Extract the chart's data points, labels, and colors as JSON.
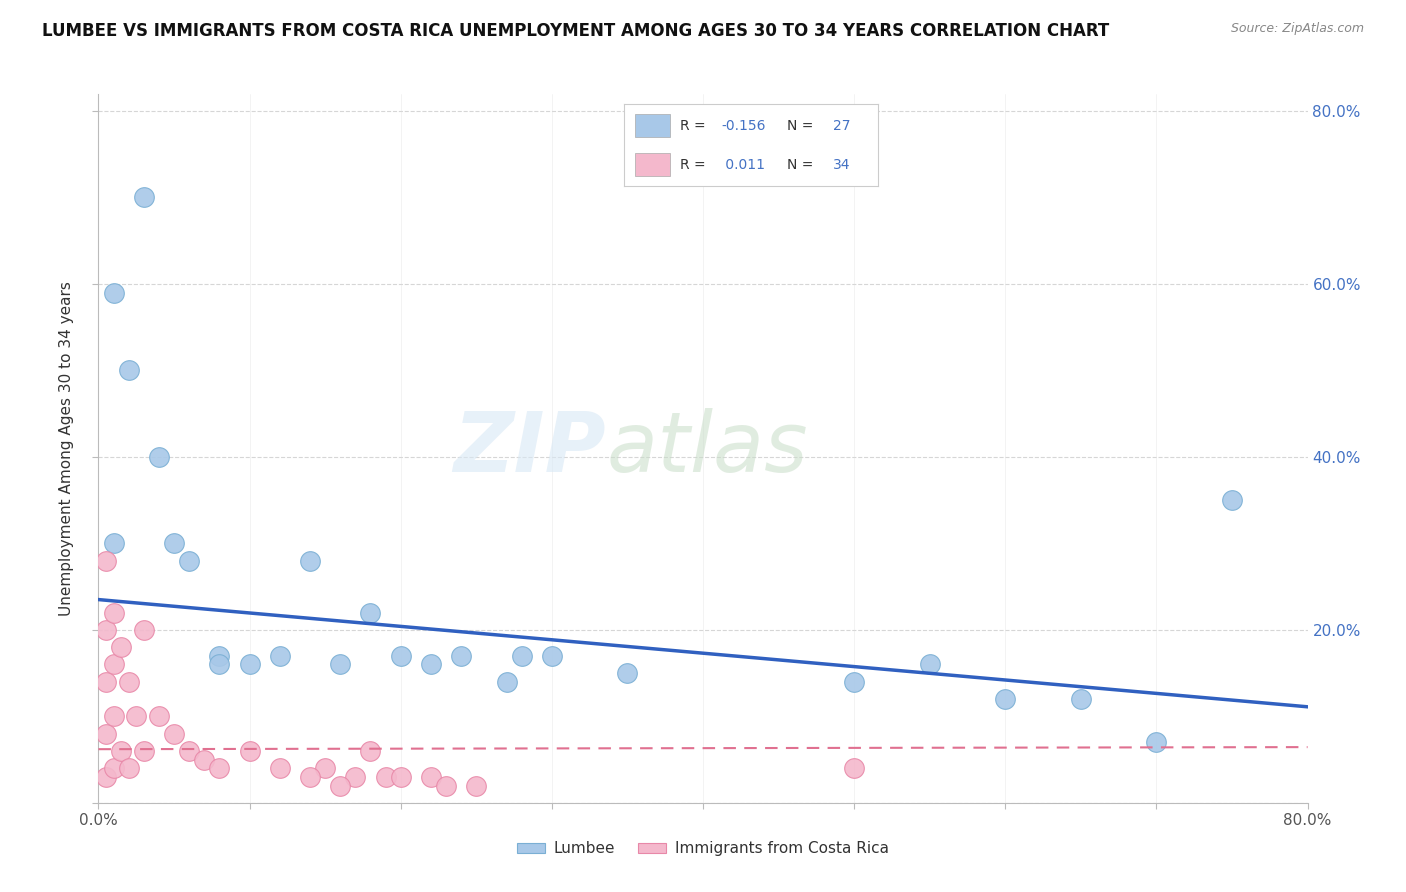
{
  "title": "LUMBEE VS IMMIGRANTS FROM COSTA RICA UNEMPLOYMENT AMONG AGES 30 TO 34 YEARS CORRELATION CHART",
  "source": "Source: ZipAtlas.com",
  "ylabel": "Unemployment Among Ages 30 to 34 years",
  "xlim": [
    0.0,
    0.8
  ],
  "ylim": [
    0.0,
    0.82
  ],
  "yticks": [
    0.0,
    0.2,
    0.4,
    0.6,
    0.8
  ],
  "lumbee_color": "#a8c8e8",
  "lumbee_edge_color": "#7aafd4",
  "costa_rica_color": "#f4b8cc",
  "costa_rica_edge_color": "#e888a8",
  "lumbee_line_color": "#3060c0",
  "costa_rica_line_color": "#e07090",
  "legend_R1": "-0.156",
  "legend_N1": "27",
  "legend_R2": "0.011",
  "legend_N2": "34",
  "lumbee_x": [
    0.01,
    0.01,
    0.02,
    0.03,
    0.04,
    0.05,
    0.06,
    0.08,
    0.1,
    0.12,
    0.14,
    0.16,
    0.18,
    0.2,
    0.22,
    0.24,
    0.27,
    0.3,
    0.35,
    0.5,
    0.55,
    0.6,
    0.65,
    0.7,
    0.75,
    0.28,
    0.08
  ],
  "lumbee_y": [
    0.59,
    0.3,
    0.5,
    0.7,
    0.4,
    0.3,
    0.28,
    0.17,
    0.16,
    0.17,
    0.28,
    0.16,
    0.22,
    0.17,
    0.16,
    0.17,
    0.14,
    0.17,
    0.15,
    0.14,
    0.16,
    0.12,
    0.12,
    0.07,
    0.35,
    0.17,
    0.16
  ],
  "costa_rica_x": [
    0.005,
    0.005,
    0.005,
    0.005,
    0.005,
    0.01,
    0.01,
    0.01,
    0.01,
    0.015,
    0.015,
    0.02,
    0.02,
    0.025,
    0.03,
    0.03,
    0.04,
    0.05,
    0.06,
    0.07,
    0.08,
    0.1,
    0.12,
    0.15,
    0.17,
    0.19,
    0.2,
    0.22,
    0.23,
    0.25,
    0.14,
    0.16,
    0.18,
    0.5
  ],
  "costa_rica_y": [
    0.28,
    0.2,
    0.14,
    0.08,
    0.03,
    0.22,
    0.16,
    0.1,
    0.04,
    0.18,
    0.06,
    0.14,
    0.04,
    0.1,
    0.2,
    0.06,
    0.1,
    0.08,
    0.06,
    0.05,
    0.04,
    0.06,
    0.04,
    0.04,
    0.03,
    0.03,
    0.03,
    0.03,
    0.02,
    0.02,
    0.03,
    0.02,
    0.06,
    0.04
  ]
}
